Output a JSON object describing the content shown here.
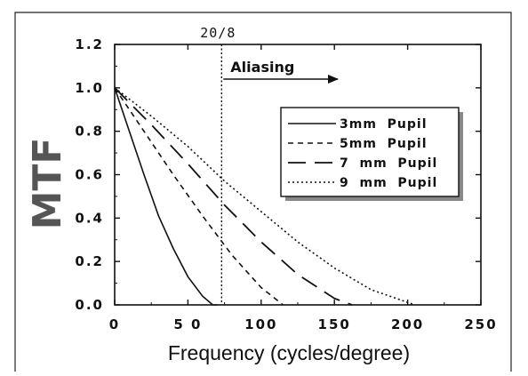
{
  "chart_data": {
    "type": "line",
    "title": "",
    "xlabel": "Frequency (cycles/degree)",
    "ylabel": "MTF",
    "xlim": [
      0,
      250
    ],
    "ylim": [
      0,
      1.2
    ],
    "x_ticks": [
      0,
      50,
      100,
      150,
      200,
      250
    ],
    "x_tick_labels": [
      "0",
      "5 0",
      "100",
      "150",
      "200",
      "250"
    ],
    "y_ticks": [
      0,
      0.2,
      0.4,
      0.6,
      0.8,
      1.0,
      1.2
    ],
    "y_tick_labels": [
      "0.0",
      "0.2",
      "0.4",
      "0.6",
      "0.8",
      "1.0",
      "1.2"
    ],
    "grid": false,
    "legend_position": "right",
    "series": [
      {
        "name": "3mm  Pupil",
        "dash": "solid",
        "x": [
          0,
          10,
          20,
          30,
          40,
          50,
          60,
          67,
          70
        ],
        "y": [
          1.0,
          0.8,
          0.6,
          0.41,
          0.26,
          0.13,
          0.04,
          0.0,
          0.0
        ]
      },
      {
        "name": "5mm  Pupil",
        "dash": "short",
        "x": [
          0,
          20,
          40,
          60,
          80,
          100,
          115
        ],
        "y": [
          1.0,
          0.8,
          0.6,
          0.41,
          0.23,
          0.08,
          0.0
        ]
      },
      {
        "name": "7  mm  Pupil",
        "dash": "long",
        "x": [
          0,
          25,
          50,
          75,
          100,
          125,
          150,
          162
        ],
        "y": [
          1.0,
          0.83,
          0.65,
          0.46,
          0.29,
          0.14,
          0.03,
          0.0
        ]
      },
      {
        "name": "9  mm  Pupil",
        "dash": "dotted",
        "x": [
          0,
          25,
          50,
          75,
          100,
          125,
          150,
          175,
          205
        ],
        "y": [
          1.0,
          0.87,
          0.73,
          0.57,
          0.43,
          0.29,
          0.17,
          0.07,
          0.0
        ]
      }
    ],
    "annotations": [
      {
        "type": "vline",
        "x": 73,
        "label": "20/8"
      },
      {
        "type": "arrow",
        "label": "Aliasing"
      }
    ]
  }
}
